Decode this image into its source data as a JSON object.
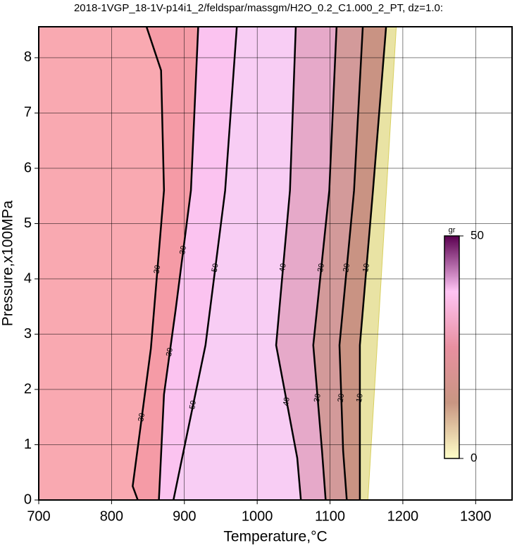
{
  "chart_data": {
    "type": "contour",
    "title": "2018-1VGP_18-1V-p14i1_2/feldspar/massgm/H2O_0.2_C1.000_2_PT, dz=1.0:",
    "x_label": "Temperature,°C",
    "y_label": "Pressure,x100MPa",
    "xlim": [
      700,
      1350
    ],
    "ylim": [
      0,
      8.56
    ],
    "xticks": [
      700,
      800,
      900,
      1000,
      1100,
      1200,
      1300
    ],
    "yticks": [
      0,
      1,
      2,
      3,
      4,
      5,
      6,
      7,
      8
    ],
    "grid": true,
    "contours": [
      {
        "level": 30,
        "x": [
          836,
          829,
          854,
          872,
          868,
          848
        ],
        "y": [
          0,
          0.25,
          2.74,
          5.6,
          7.77,
          8.56
        ]
      },
      {
        "level": 30,
        "x": [
          865,
          872,
          888,
          909,
          919
        ],
        "y": [
          0,
          1.91,
          3.44,
          5.6,
          8.56
        ]
      },
      {
        "level": 50,
        "x": [
          885,
          895,
          929,
          956,
          972
        ],
        "y": [
          0,
          0.64,
          2.8,
          5.6,
          8.56
        ]
      },
      {
        "level": 40,
        "x": [
          1060,
          1055,
          1026,
          1045,
          1053
        ],
        "y": [
          0,
          0.76,
          2.8,
          5.6,
          8.56
        ]
      },
      {
        "level": 30,
        "x": [
          1094,
          1089,
          1077,
          1099,
          1109
        ],
        "y": [
          0,
          0.89,
          2.8,
          5.6,
          8.56
        ]
      },
      {
        "level": 20,
        "x": [
          1123,
          1118,
          1113,
          1133,
          1145
        ],
        "y": [
          0,
          0.89,
          2.8,
          5.6,
          8.56
        ]
      },
      {
        "level": 10,
        "x": [
          1141,
          1141,
          1141,
          1159,
          1177
        ],
        "y": [
          0,
          0.89,
          2.8,
          5.6,
          8.56
        ]
      }
    ],
    "edge": {
      "x": [
        1152,
        1191
      ],
      "y": [
        0,
        8.56
      ]
    },
    "band_colors": [
      "#f9a9b1",
      "#f59ba6",
      "#fbc3f0",
      "#f8cdf4",
      "#e6a9c9",
      "#d39a9a",
      "#c99383",
      "#e9e3a4"
    ],
    "colorbar": {
      "title": "gr",
      "lim": [
        0,
        50
      ],
      "ticks": [
        0,
        50
      ],
      "colors": [
        "#ffffc8",
        "#c89682",
        "#e890a0",
        "#ffc4f4",
        "#5a0050"
      ]
    }
  }
}
